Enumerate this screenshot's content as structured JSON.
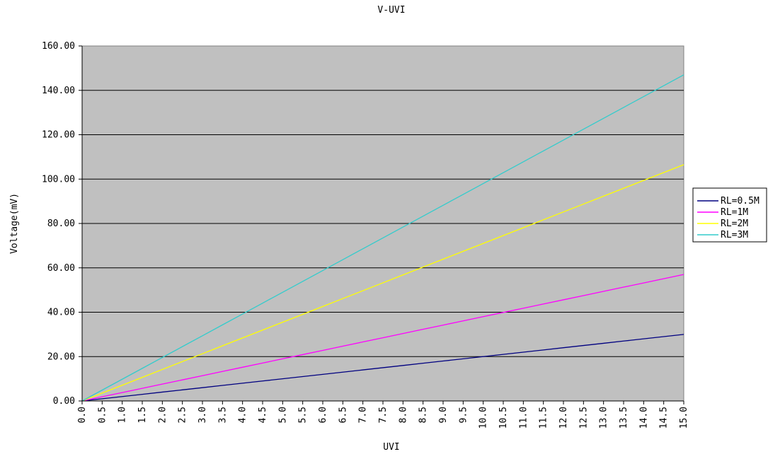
{
  "chart_data": {
    "type": "line",
    "title": "V-UVI",
    "xlabel": "UVI",
    "ylabel": "Voltage(mV)",
    "x": [
      0.0,
      0.5,
      1.0,
      1.5,
      2.0,
      2.5,
      3.0,
      3.5,
      4.0,
      4.5,
      5.0,
      5.5,
      6.0,
      6.5,
      7.0,
      7.5,
      8.0,
      8.5,
      9.0,
      9.5,
      10.0,
      10.5,
      11.0,
      11.5,
      12.0,
      12.5,
      13.0,
      13.5,
      14.0,
      14.5,
      15.0
    ],
    "x_tick_labels": [
      "0.0",
      "0.5",
      "1.0",
      "1.5",
      "2.0",
      "2.5",
      "3.0",
      "3.5",
      "4.0",
      "4.5",
      "5.0",
      "5.5",
      "6.0",
      "6.5",
      "7.0",
      "7.5",
      "8.0",
      "8.5",
      "9.0",
      "9.5",
      "10.0",
      "10.5",
      "11.0",
      "11.5",
      "12.0",
      "12.5",
      "13.0",
      "13.5",
      "14.0",
      "14.5",
      "15.0"
    ],
    "y_tick_labels": [
      "0.00",
      "20.00",
      "40.00",
      "60.00",
      "80.00",
      "100.00",
      "120.00",
      "140.00",
      "160.00"
    ],
    "ylim": [
      0,
      160
    ],
    "grid": "horizontal",
    "plot_background": "#c0c0c0",
    "legend_position": "right",
    "series": [
      {
        "name": "RL=0.5M",
        "color": "#000080",
        "values": [
          0.0,
          1.0,
          2.0,
          3.0,
          4.0,
          5.0,
          6.0,
          7.0,
          8.0,
          9.0,
          10.0,
          11.0,
          12.0,
          13.0,
          14.0,
          15.0,
          16.0,
          17.0,
          18.0,
          19.0,
          20.0,
          21.0,
          22.0,
          23.0,
          24.0,
          25.0,
          26.0,
          27.0,
          28.0,
          29.0,
          30.0
        ]
      },
      {
        "name": "RL=1M",
        "color": "#ff00ff",
        "values": [
          0.0,
          1.9,
          3.8,
          5.7,
          7.6,
          9.5,
          11.4,
          13.3,
          15.2,
          17.1,
          19.0,
          20.9,
          22.8,
          24.7,
          26.6,
          28.5,
          30.4,
          32.3,
          34.2,
          36.1,
          38.0,
          39.9,
          41.8,
          43.7,
          45.6,
          47.5,
          49.4,
          51.3,
          53.2,
          55.1,
          57.0
        ]
      },
      {
        "name": "RL=2M",
        "color": "#ffff00",
        "values": [
          0.0,
          3.55,
          7.1,
          10.65,
          14.2,
          17.75,
          21.3,
          24.85,
          28.4,
          31.95,
          35.5,
          39.05,
          42.6,
          46.15,
          49.7,
          53.25,
          56.8,
          60.35,
          63.9,
          67.45,
          71.0,
          74.55,
          78.1,
          81.65,
          85.2,
          88.75,
          92.3,
          95.85,
          99.4,
          102.95,
          106.5
        ]
      },
      {
        "name": "RL=3M",
        "color": "#33cccc",
        "values": [
          0.0,
          4.9,
          9.8,
          14.7,
          19.6,
          24.5,
          29.4,
          34.3,
          39.2,
          44.1,
          49.0,
          53.9,
          58.8,
          63.7,
          68.6,
          73.5,
          78.4,
          83.3,
          88.2,
          93.1,
          98.0,
          102.9,
          107.8,
          112.7,
          117.6,
          122.5,
          127.4,
          132.3,
          137.2,
          142.1,
          147.0
        ]
      }
    ]
  }
}
